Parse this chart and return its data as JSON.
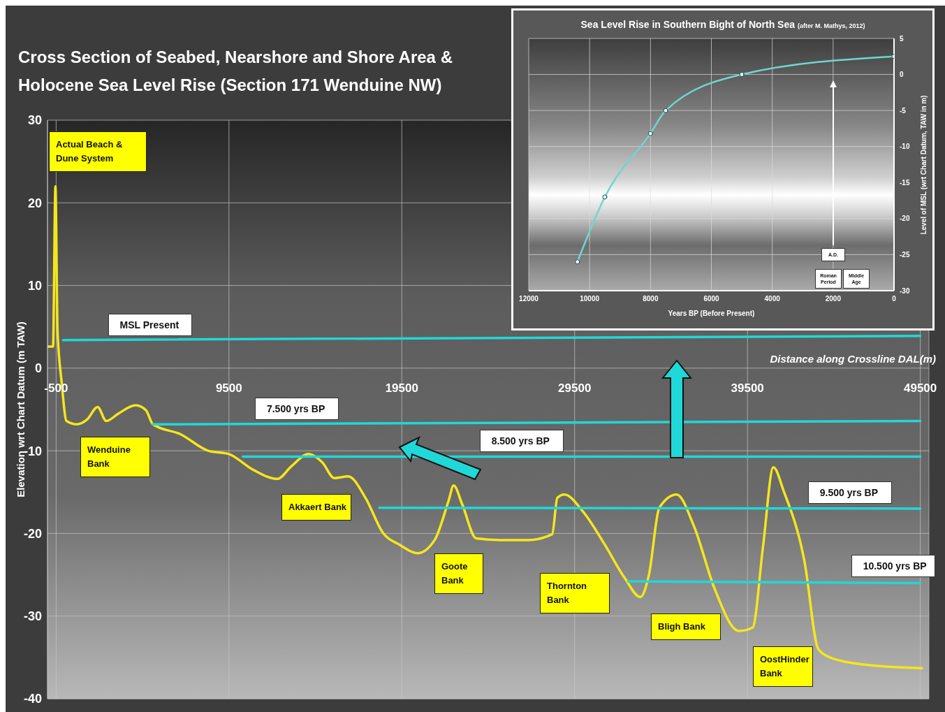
{
  "chart_data": [
    {
      "type": "line",
      "title": "Cross Section of Seabed, Nearshore and Shore Area & Holocene Sea Level Rise  (Section 171 Wenduine NW)",
      "xlabel": "Distance along Crossline DAL(m)",
      "ylabel": "Elevation wrt Chart Datum (m TAW)",
      "xlim": [
        -1000,
        50000
      ],
      "xticks": [
        -500,
        9500,
        19500,
        29500,
        39500,
        49500
      ],
      "ylim": [
        -40,
        30
      ],
      "yticks": [
        -40,
        -30,
        -20,
        -10,
        0,
        10,
        20,
        30
      ],
      "grid": true,
      "legend": false,
      "marker": "none",
      "line_style": "solid",
      "series": [
        {
          "color": "#f5e61c",
          "x": [
            -1000,
            -680,
            -540,
            -420,
            -180,
            100,
            700,
            1300,
            1900,
            2400,
            3100,
            4100,
            4700,
            5100,
            6700,
            8300,
            9500,
            10900,
            12300,
            13100,
            14100,
            14900,
            15600,
            16400,
            17400,
            18400,
            19400,
            20400,
            21400,
            22200,
            22500,
            23000,
            23800,
            25200,
            26800,
            28200,
            28500,
            28900,
            30000,
            31200,
            32400,
            33300,
            33800,
            34400,
            35400,
            36400,
            37600,
            39000,
            39800,
            40400,
            41000,
            41600,
            42800,
            43600,
            44400,
            46400,
            49600
          ],
          "values": [
            2.6,
            2.6,
            22,
            4.6,
            -1.7,
            -6.4,
            -6.8,
            -6.2,
            -4.7,
            -6.4,
            -5.5,
            -4.5,
            -5.1,
            -6.8,
            -8,
            -10,
            -10.4,
            -12.3,
            -13.4,
            -11.9,
            -10.4,
            -11.4,
            -13.3,
            -13.1,
            -15.7,
            -19.9,
            -21.4,
            -22.4,
            -20.8,
            -16.1,
            -14.2,
            -16.5,
            -20.6,
            -20.8,
            -20.8,
            -20.1,
            -15.7,
            -15.3,
            -17.4,
            -21.2,
            -25.4,
            -27.7,
            -25,
            -16.9,
            -15.3,
            -19.1,
            -26.7,
            -31.8,
            -31.4,
            -21.6,
            -12,
            -14.9,
            -23.4,
            -34,
            -35.1,
            -35.9,
            -36.3
          ]
        },
        {
          "name": "MSL Present",
          "color": "#20d8d8",
          "x": [
            -100,
            49500
          ],
          "values": [
            3.4,
            3.9
          ]
        },
        {
          "name": "7.500 yrs BP",
          "color": "#20d8d8",
          "x": [
            5100,
            49500
          ],
          "values": [
            -6.8,
            -6.4
          ]
        },
        {
          "name": "8.500 yrs BP",
          "color": "#20d8d8",
          "x": [
            10300,
            26000,
            49500
          ],
          "values": [
            -10.7,
            -10.7,
            -10.7
          ]
        },
        {
          "name": "9.500 yrs BP",
          "color": "#20d8d8",
          "x": [
            18200,
            49500
          ],
          "values": [
            -16.9,
            -17
          ]
        },
        {
          "name": "10.500 yrs BP",
          "color": "#20d8d8",
          "x": [
            32600,
            49500
          ],
          "values": [
            -25.8,
            -26
          ]
        }
      ],
      "annotations": [
        "Actual Beach & Dune System",
        "Wenduine Bank",
        "Akkaert Bank",
        "Goote Bank",
        "Thornton Bank",
        "Bligh Bank",
        "OostHinder Bank"
      ]
    },
    {
      "type": "line",
      "title": "Sea Level Rise in Southern Bight of North Sea",
      "subtitle": "(after M. Mathys, 2012)",
      "xlabel": "Years BP (Before Present)",
      "ylabel": "Level of MSL (wrt Chart Datum, TAW in m)",
      "xlim": [
        12000,
        0
      ],
      "xticks": [
        12000,
        10000,
        8000,
        6000,
        4000,
        2000,
        0
      ],
      "ylim": [
        -30,
        5
      ],
      "yticks": [
        -30,
        -25,
        -20,
        -15,
        -10,
        -5,
        0,
        5
      ],
      "grid": true,
      "legend": false,
      "marker": "circle",
      "line_style": "solid",
      "series": [
        {
          "color": "#6fd6d0",
          "x": [
            10400,
            9500,
            8000,
            7500,
            5000,
            0
          ],
          "values": [
            -26,
            -17,
            -8.2,
            -5,
            0,
            2.5
          ]
        }
      ],
      "annotations": [
        "A.D.",
        "Roman Period",
        "Middle Age"
      ]
    }
  ]
}
